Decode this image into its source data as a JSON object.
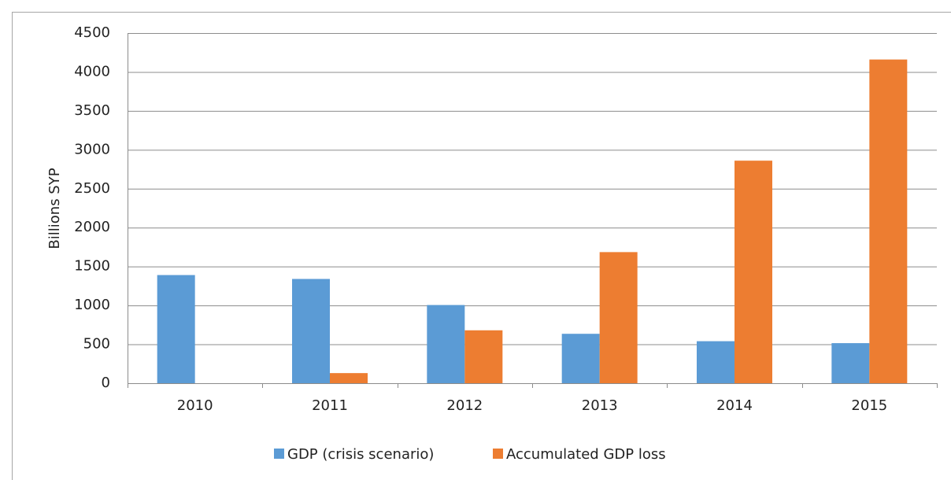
{
  "chart_data": {
    "type": "bar",
    "categories": [
      "2010",
      "2011",
      "2012",
      "2013",
      "2014",
      "2015"
    ],
    "series": [
      {
        "name": "GDP (crisis scenario)",
        "color": "#5b9bd5",
        "values": [
          1390,
          1340,
          1005,
          635,
          540,
          515
        ]
      },
      {
        "name": "Accumulated GDP loss",
        "color": "#ed7d31",
        "values": [
          0,
          130,
          680,
          1685,
          2860,
          4160
        ]
      }
    ],
    "y_label": "Billions SYP",
    "ylim": [
      0,
      4500
    ],
    "yticks": [
      0,
      500,
      1000,
      1500,
      2000,
      2500,
      3000,
      3500,
      4000,
      4500
    ],
    "grid": true,
    "legend": "bottom"
  }
}
